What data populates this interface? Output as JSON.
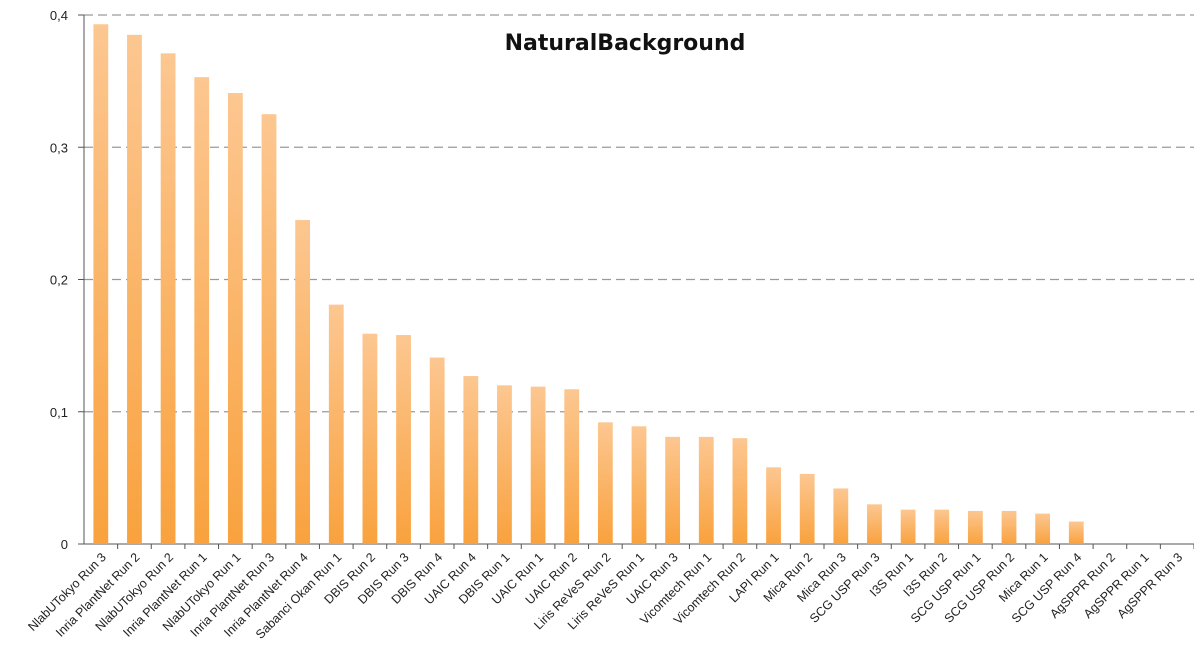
{
  "chart_data": {
    "type": "bar",
    "title": "NaturalBackground",
    "xlabel": "",
    "ylabel": "",
    "ylim": [
      0,
      0.4
    ],
    "yticks": [
      "0",
      "0,1",
      "0,2",
      "0,3",
      "0,4"
    ],
    "grid": true,
    "legend": "none",
    "bar_color_top": "#fcc791",
    "bar_color_bottom": "#f9a23e",
    "categories": [
      "NlabUTokyo Run 3",
      "Inria PlantNet Run 2",
      "NlabUTokyo Run 2",
      "Inria PlantNet Run 1",
      "NlabUTokyo Run 1",
      "Inria PlantNet Run 3",
      "Inria PlantNet Run 4",
      "Sabanci Okan Run 1",
      "DBIS Run 2",
      "DBIS Run 3",
      "DBIS Run 4",
      "UAIC Run 4",
      "DBIS Run 1",
      "UAIC Run 1",
      "UAIC Run 2",
      "Liris ReVeS Run 2",
      "Liris ReVeS Run 1",
      "UAIC Run 3",
      "Vicomtech Run 1",
      "Vicomtech Run 2",
      "LAPI Run 1",
      "Mica Run 2",
      "Mica Run 3",
      "SCG USP Run 3",
      "I3S Run 1",
      "I3S Run 2",
      "SCG USP Run 1",
      "SCG USP Run 2",
      "Mica Run 1",
      "SCG USP Run 4",
      "AgSPPR Run 2",
      "AgSPPR Run 1",
      "AgSPPR Run 3"
    ],
    "values": [
      0.393,
      0.385,
      0.371,
      0.353,
      0.341,
      0.325,
      0.245,
      0.181,
      0.159,
      0.158,
      0.141,
      0.127,
      0.12,
      0.119,
      0.117,
      0.092,
      0.089,
      0.081,
      0.081,
      0.08,
      0.058,
      0.053,
      0.042,
      0.03,
      0.026,
      0.026,
      0.025,
      0.025,
      0.023,
      0.017,
      0,
      0,
      0
    ]
  }
}
